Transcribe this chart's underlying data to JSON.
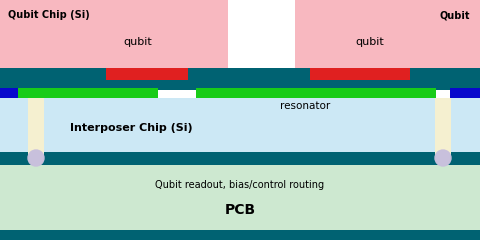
{
  "bg_teal": "#006272",
  "qubit_chip_pink": "#f8b8c0",
  "interposer_color": "#cce8f5",
  "pcb_color": "#cde8d0",
  "teal_bar_color": "#006272",
  "red_bar_color": "#e02020",
  "green_bar_color": "#18cc18",
  "blue_bar_color": "#0808cc",
  "pillar_color": "#f5f0d0",
  "ball_color": "#c8c0dc",
  "text_color": "#000000",
  "label_qubit_chip": "Qubit Chip (Si)",
  "label_qubit": "qubit",
  "label_resonator": "resonator",
  "label_interposer": "Interposer Chip (Si)",
  "label_pcb_text": "Qubit readout, bias/control routing",
  "label_pcb": "PCB",
  "label_qubit_right": "Qubit"
}
